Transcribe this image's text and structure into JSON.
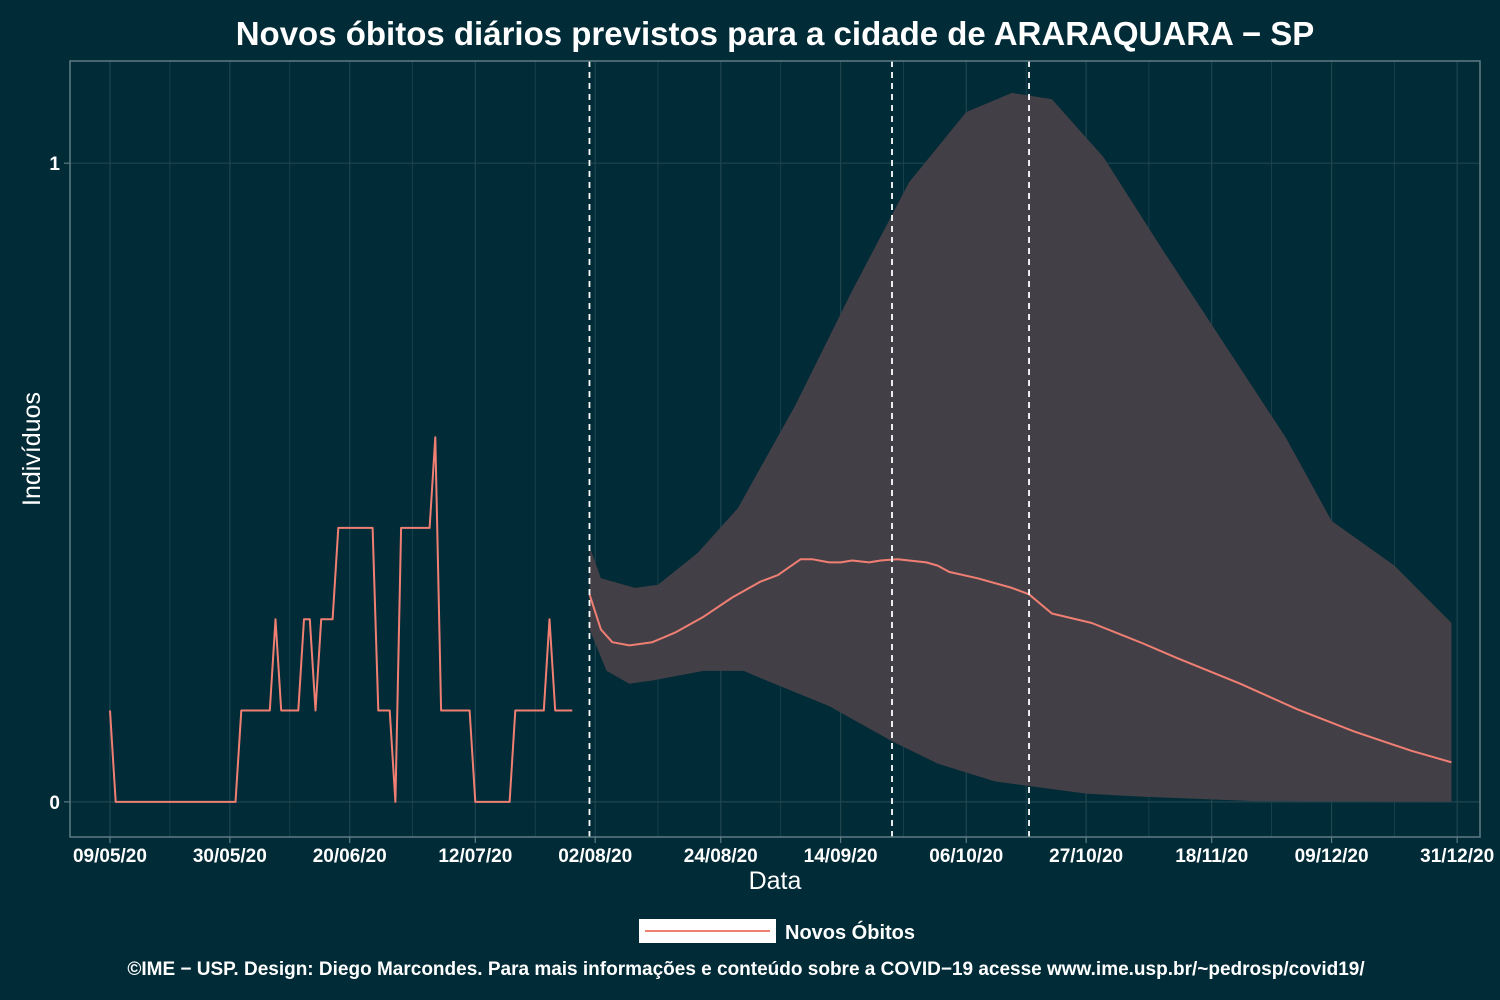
{
  "chart_data": {
    "type": "line",
    "title": "Novos óbitos diários previstos para a cidade de ARARAQUARA − SP",
    "xlabel": "Data",
    "ylabel": "Indivíduos",
    "x_tick_labels": [
      "09/05/20",
      "30/05/20",
      "20/06/20",
      "12/07/20",
      "02/08/20",
      "24/08/20",
      "14/09/20",
      "06/10/20",
      "27/10/20",
      "18/11/20",
      "09/12/20",
      "31/12/20"
    ],
    "y_tick_labels": [
      "0",
      "1"
    ],
    "y_ticks": [
      0,
      1
    ],
    "ylim": [
      -0.055,
      1.16
    ],
    "xlim": [
      "2020-05-02",
      "2021-01-04"
    ],
    "grid": true,
    "legend_position": "bottom",
    "vlines": [
      "2020-08-01",
      "2020-09-23",
      "2020-10-17"
    ],
    "colors": {
      "background": "#012b36",
      "line": "#f07f73",
      "band": "#433f47",
      "grid": "#1f4550",
      "border": "#5f7c83"
    },
    "series": [
      {
        "name": "Novos Óbitos",
        "kind": "observed",
        "points": [
          [
            "2020-05-09",
            0.143
          ],
          [
            "2020-05-10",
            0
          ],
          [
            "2020-05-31",
            0
          ],
          [
            "2020-06-01",
            0.143
          ],
          [
            "2020-06-06",
            0.143
          ],
          [
            "2020-06-07",
            0.286
          ],
          [
            "2020-06-08",
            0.143
          ],
          [
            "2020-06-11",
            0.143
          ],
          [
            "2020-06-12",
            0.286
          ],
          [
            "2020-06-13",
            0.286
          ],
          [
            "2020-06-14",
            0.143
          ],
          [
            "2020-06-15",
            0.286
          ],
          [
            "2020-06-17",
            0.286
          ],
          [
            "2020-06-18",
            0.429
          ],
          [
            "2020-06-24",
            0.429
          ],
          [
            "2020-06-25",
            0.143
          ],
          [
            "2020-06-27",
            0.143
          ],
          [
            "2020-06-28",
            0
          ],
          [
            "2020-06-29",
            0.429
          ],
          [
            "2020-07-04",
            0.429
          ],
          [
            "2020-07-05",
            0.571
          ],
          [
            "2020-07-06",
            0.143
          ],
          [
            "2020-07-11",
            0.143
          ],
          [
            "2020-07-12",
            0
          ],
          [
            "2020-07-18",
            0
          ],
          [
            "2020-07-19",
            0.143
          ],
          [
            "2020-07-24",
            0.143
          ],
          [
            "2020-07-25",
            0.286
          ],
          [
            "2020-07-26",
            0.143
          ],
          [
            "2020-07-29",
            0.143
          ]
        ]
      },
      {
        "name": "Novos Óbitos",
        "kind": "forecast",
        "points": [
          [
            "2020-08-01",
            0.325
          ],
          [
            "2020-08-03",
            0.27
          ],
          [
            "2020-08-05",
            0.25
          ],
          [
            "2020-08-08",
            0.245
          ],
          [
            "2020-08-12",
            0.25
          ],
          [
            "2020-08-16",
            0.265
          ],
          [
            "2020-08-21",
            0.29
          ],
          [
            "2020-08-26",
            0.32
          ],
          [
            "2020-08-31",
            0.345
          ],
          [
            "2020-09-03",
            0.355
          ],
          [
            "2020-09-07",
            0.38
          ],
          [
            "2020-09-09",
            0.38
          ],
          [
            "2020-09-12",
            0.375
          ],
          [
            "2020-09-14",
            0.375
          ],
          [
            "2020-09-16",
            0.378
          ],
          [
            "2020-09-19",
            0.375
          ],
          [
            "2020-09-21",
            0.378
          ],
          [
            "2020-09-24",
            0.38
          ],
          [
            "2020-09-29",
            0.375
          ],
          [
            "2020-10-01",
            0.37
          ],
          [
            "2020-10-03",
            0.36
          ],
          [
            "2020-10-08",
            0.35
          ],
          [
            "2020-10-14",
            0.335
          ],
          [
            "2020-10-17",
            0.325
          ],
          [
            "2020-10-21",
            0.295
          ],
          [
            "2020-10-28",
            0.28
          ],
          [
            "2020-11-06",
            0.248
          ],
          [
            "2020-11-12",
            0.225
          ],
          [
            "2020-11-23",
            0.185
          ],
          [
            "2020-12-03",
            0.145
          ],
          [
            "2020-12-13",
            0.11
          ],
          [
            "2020-12-23",
            0.08
          ],
          [
            "2020-12-30",
            0.062
          ]
        ]
      }
    ],
    "band": {
      "upper": [
        [
          "2020-08-01",
          0.4
        ],
        [
          "2020-08-03",
          0.35
        ],
        [
          "2020-08-09",
          0.335
        ],
        [
          "2020-08-13",
          0.34
        ],
        [
          "2020-08-20",
          0.39
        ],
        [
          "2020-08-27",
          0.46
        ],
        [
          "2020-09-06",
          0.62
        ],
        [
          "2020-09-16",
          0.8
        ],
        [
          "2020-09-26",
          0.97
        ],
        [
          "2020-10-06",
          1.08
        ],
        [
          "2020-10-14",
          1.11
        ],
        [
          "2020-10-21",
          1.1
        ],
        [
          "2020-10-30",
          1.01
        ],
        [
          "2020-11-09",
          0.87
        ],
        [
          "2020-11-20",
          0.72
        ],
        [
          "2020-12-01",
          0.57
        ],
        [
          "2020-12-09",
          0.44
        ],
        [
          "2020-12-20",
          0.37
        ],
        [
          "2020-12-30",
          0.28
        ]
      ],
      "lower": [
        [
          "2020-12-30",
          0
        ],
        [
          "2020-11-26",
          0.001
        ],
        [
          "2020-11-06",
          0.008
        ],
        [
          "2020-10-27",
          0.013
        ],
        [
          "2020-10-11",
          0.032
        ],
        [
          "2020-10-01",
          0.06
        ],
        [
          "2020-09-23",
          0.095
        ],
        [
          "2020-09-12",
          0.15
        ],
        [
          "2020-09-01",
          0.19
        ],
        [
          "2020-08-28",
          0.205
        ],
        [
          "2020-08-21",
          0.205
        ],
        [
          "2020-08-12",
          0.19
        ],
        [
          "2020-08-08",
          0.185
        ],
        [
          "2020-08-04",
          0.205
        ],
        [
          "2020-08-01",
          0.27
        ]
      ]
    }
  },
  "legend": {
    "label": "Novos Óbitos"
  },
  "caption": "©IME − USP. Design: Diego Marcondes. Para mais informações e conteúdo sobre a COVID−19 acesse www.ime.usp.br/~pedrosp/covid19/"
}
